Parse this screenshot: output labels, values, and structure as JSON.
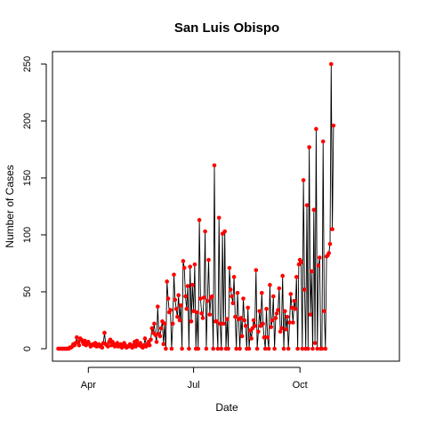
{
  "chart_data": {
    "type": "line",
    "title": "San Luis Obispo",
    "xlabel": "Date",
    "ylabel": "Number of Cases",
    "ylim": [
      0,
      250
    ],
    "yticks": [
      0,
      50,
      100,
      150,
      200,
      250
    ],
    "xlim": [
      "2020-03-01",
      "2020-12-26"
    ],
    "xticks": [
      {
        "label": "Apr",
        "date": "2020-04-01"
      },
      {
        "label": "Jul",
        "date": "2020-07-01"
      },
      {
        "label": "Oct",
        "date": "2020-10-01"
      }
    ],
    "grid": false,
    "colors": {
      "line": "#000000",
      "point": "#ff0000"
    },
    "start_date": "2020-03-06",
    "values": [
      0,
      0,
      0,
      0,
      0,
      0,
      0,
      0,
      0,
      0,
      1,
      1,
      2,
      4,
      3,
      5,
      10,
      6,
      3,
      9,
      8,
      6,
      4,
      7,
      3,
      5,
      6,
      4,
      2,
      3,
      4,
      3,
      5,
      2,
      3,
      4,
      2,
      3,
      1,
      5,
      14,
      4,
      3,
      2,
      6,
      8,
      3,
      6,
      4,
      2,
      3,
      5,
      2,
      3,
      4,
      1,
      2,
      5,
      3,
      1,
      2,
      2,
      4,
      3,
      1,
      3,
      6,
      2,
      7,
      4,
      3,
      5,
      2,
      1,
      3,
      9,
      2,
      4,
      6,
      3,
      8,
      18,
      14,
      22,
      12,
      6,
      37,
      13,
      11,
      18,
      24,
      4,
      22,
      0,
      59,
      44,
      32,
      34,
      0,
      22,
      65,
      43,
      35,
      28,
      47,
      25,
      38,
      0,
      77,
      71,
      46,
      35,
      55,
      0,
      72,
      24,
      56,
      33,
      74,
      0,
      32,
      0,
      113,
      44,
      31,
      27,
      45,
      103,
      0,
      42,
      78,
      30,
      45,
      46,
      0,
      161,
      24,
      24,
      0,
      115,
      22,
      0,
      101,
      22,
      103,
      0,
      26,
      0,
      71,
      52,
      46,
      40,
      63,
      28,
      0,
      49,
      26,
      0,
      27,
      11,
      44,
      25,
      20,
      0,
      36,
      0,
      16,
      9,
      18,
      25,
      20,
      69,
      0,
      15,
      33,
      20,
      49,
      22,
      10,
      0,
      35,
      10,
      0,
      56,
      19,
      25,
      46,
      0,
      27,
      31,
      34,
      53,
      15,
      18,
      64,
      0,
      33,
      17,
      28,
      0,
      23,
      48,
      36,
      23,
      42,
      35,
      63,
      0,
      74,
      78,
      76,
      0,
      148,
      52,
      0,
      126,
      0,
      177,
      30,
      68,
      0,
      122,
      5,
      193,
      0,
      73,
      80,
      0,
      0,
      182,
      33,
      0,
      81,
      82,
      84,
      92,
      250,
      105,
      196
    ],
    "point_overrides": [
      {
        "index": 81,
        "value": 18
      },
      {
        "index": 84,
        "value": 12
      }
    ]
  }
}
